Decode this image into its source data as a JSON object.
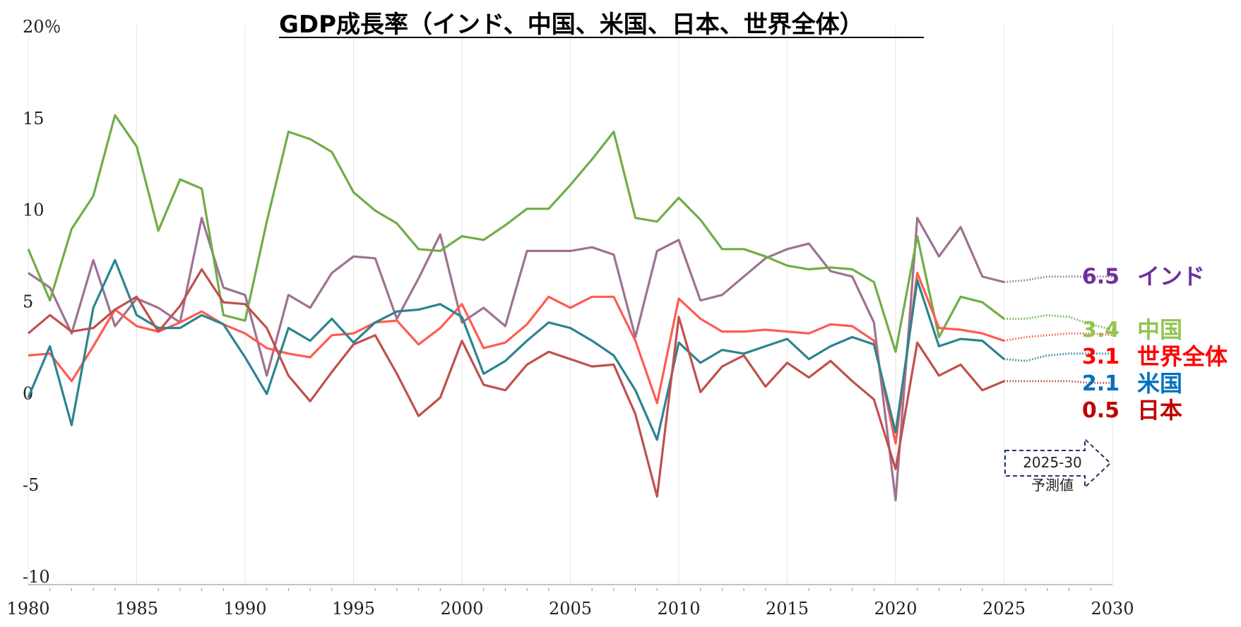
{
  "chart_data": {
    "type": "line",
    "title": "GDP成長率（インド、中国、米国、日本、世界全体）",
    "ylabel_unit": "％",
    "ylim": [
      -10,
      20
    ],
    "xlim": [
      1980,
      2030
    ],
    "yticks": [
      {
        "value": 20,
        "label": "20"
      },
      {
        "value": 15,
        "label": "15"
      },
      {
        "value": 10,
        "label": "10"
      },
      {
        "value": 5,
        "label": "5"
      },
      {
        "value": 0,
        "label": "0"
      },
      {
        "value": -5,
        "label": "-5"
      },
      {
        "value": -10,
        "label": "-10"
      }
    ],
    "xticks": [
      "1980",
      "1985",
      "1990",
      "1995",
      "2000",
      "2005",
      "2010",
      "2015",
      "2020",
      "2025",
      "2030"
    ],
    "forecast_note": {
      "line1": "2025-30",
      "line2": "予測値"
    },
    "series": [
      {
        "name": "インド",
        "label_value": "6.5",
        "color": "#9E7291",
        "label_color": "#7030A0",
        "years": [
          1980,
          1981,
          1982,
          1983,
          1984,
          1985,
          1986,
          1987,
          1988,
          1989,
          1990,
          1991,
          1992,
          1993,
          1994,
          1995,
          1996,
          1997,
          1998,
          1999,
          2000,
          2001,
          2002,
          2003,
          2004,
          2005,
          2006,
          2007,
          2008,
          2009,
          2010,
          2011,
          2012,
          2013,
          2014,
          2015,
          2016,
          2017,
          2018,
          2019,
          2020,
          2021,
          2022,
          2023,
          2024,
          2025
        ],
        "values": [
          6.5,
          5.7,
          3.2,
          7.2,
          3.6,
          5.1,
          4.6,
          3.8,
          9.5,
          5.7,
          5.3,
          0.9,
          5.3,
          4.6,
          6.5,
          7.4,
          7.3,
          4.0,
          6.2,
          8.6,
          3.8,
          4.6,
          3.6,
          7.7,
          7.7,
          7.7,
          7.9,
          7.5,
          3.0,
          7.7,
          8.3,
          5.0,
          5.3,
          6.3,
          7.3,
          7.8,
          8.1,
          6.6,
          6.3,
          3.8,
          -5.9,
          9.5,
          7.4,
          9.0,
          6.3,
          6.0
        ],
        "forecast_years": [
          2025,
          2026,
          2027,
          2028,
          2029,
          2030
        ],
        "forecast_values": [
          6.0,
          6.1,
          6.3,
          6.3,
          6.3,
          6.3
        ]
      },
      {
        "name": "中国",
        "label_value": "3.4",
        "color": "#70AD47",
        "label_color": "#92C552",
        "years": [
          1980,
          1981,
          1982,
          1983,
          1984,
          1985,
          1986,
          1987,
          1988,
          1989,
          1990,
          1991,
          1992,
          1993,
          1994,
          1995,
          1996,
          1997,
          1998,
          1999,
          2000,
          2001,
          2002,
          2003,
          2004,
          2005,
          2006,
          2007,
          2008,
          2009,
          2010,
          2011,
          2012,
          2013,
          2014,
          2015,
          2016,
          2017,
          2018,
          2019,
          2020,
          2021,
          2022,
          2023,
          2024,
          2025
        ],
        "values": [
          7.8,
          5.0,
          8.9,
          10.7,
          15.1,
          13.4,
          8.8,
          11.6,
          11.1,
          4.2,
          3.9,
          9.3,
          14.2,
          13.8,
          13.1,
          10.9,
          9.9,
          9.2,
          7.8,
          7.7,
          8.5,
          8.3,
          9.1,
          10.0,
          10.0,
          11.3,
          12.7,
          14.2,
          9.5,
          9.3,
          10.6,
          9.4,
          7.8,
          7.8,
          7.4,
          6.9,
          6.7,
          6.8,
          6.7,
          6.0,
          2.2,
          8.5,
          3.0,
          5.2,
          4.9,
          4.0
        ],
        "forecast_years": [
          2025,
          2026,
          2027,
          2028,
          2029,
          2030
        ],
        "forecast_values": [
          4.0,
          4.0,
          4.2,
          4.1,
          3.7,
          3.4
        ]
      },
      {
        "name": "世界全体",
        "label_value": "3.1",
        "color": "#FF5B4F",
        "label_color": "#FF0000",
        "years": [
          1980,
          1981,
          1982,
          1983,
          1984,
          1985,
          1986,
          1987,
          1988,
          1989,
          1990,
          1991,
          1992,
          1993,
          1994,
          1995,
          1996,
          1997,
          1998,
          1999,
          2000,
          2001,
          2002,
          2003,
          2004,
          2005,
          2006,
          2007,
          2008,
          2009,
          2010,
          2011,
          2012,
          2013,
          2014,
          2015,
          2016,
          2017,
          2018,
          2019,
          2020,
          2021,
          2022,
          2023,
          2024,
          2025
        ],
        "values": [
          2.0,
          2.1,
          0.6,
          2.5,
          4.5,
          3.6,
          3.3,
          3.8,
          4.4,
          3.7,
          3.2,
          2.4,
          2.1,
          1.9,
          3.1,
          3.2,
          3.8,
          3.9,
          2.6,
          3.5,
          4.8,
          2.4,
          2.7,
          3.7,
          5.2,
          4.6,
          5.2,
          5.2,
          2.8,
          -0.6,
          5.1,
          4.0,
          3.3,
          3.3,
          3.4,
          3.3,
          3.2,
          3.7,
          3.6,
          2.8,
          -2.8,
          6.5,
          3.5,
          3.4,
          3.2,
          2.8
        ],
        "forecast_years": [
          2025,
          2026,
          2027,
          2028,
          2029,
          2030
        ],
        "forecast_values": [
          2.8,
          3.0,
          3.1,
          3.2,
          3.2,
          3.1
        ]
      },
      {
        "name": "米国",
        "label_value": "2.1",
        "color": "#2B8491",
        "label_color": "#0070C0",
        "years": [
          1980,
          1981,
          1982,
          1983,
          1984,
          1985,
          1986,
          1987,
          1988,
          1989,
          1990,
          1991,
          1992,
          1993,
          1994,
          1995,
          1996,
          1997,
          1998,
          1999,
          2000,
          2001,
          2002,
          2003,
          2004,
          2005,
          2006,
          2007,
          2008,
          2009,
          2010,
          2011,
          2012,
          2013,
          2014,
          2015,
          2016,
          2017,
          2018,
          2019,
          2020,
          2021,
          2022,
          2023,
          2024,
          2025
        ],
        "values": [
          -0.3,
          2.5,
          -1.8,
          4.6,
          7.2,
          4.2,
          3.5,
          3.5,
          4.2,
          3.7,
          1.9,
          -0.1,
          3.5,
          2.8,
          4.0,
          2.7,
          3.8,
          4.4,
          4.5,
          4.8,
          4.1,
          1.0,
          1.7,
          2.8,
          3.8,
          3.5,
          2.8,
          2.0,
          0.1,
          -2.6,
          2.7,
          1.6,
          2.3,
          2.1,
          2.5,
          2.9,
          1.8,
          2.5,
          3.0,
          2.6,
          -2.2,
          6.1,
          2.5,
          2.9,
          2.8,
          1.8
        ],
        "forecast_years": [
          2025,
          2026,
          2027,
          2028,
          2029,
          2030
        ],
        "forecast_values": [
          1.8,
          1.7,
          2.0,
          2.1,
          2.1,
          2.1
        ]
      },
      {
        "name": "日本",
        "label_value": "0.5",
        "color": "#C0504D",
        "label_color": "#C00000",
        "years": [
          1980,
          1981,
          1982,
          1983,
          1984,
          1985,
          1986,
          1987,
          1988,
          1989,
          1990,
          1991,
          1992,
          1993,
          1994,
          1995,
          1996,
          1997,
          1998,
          1999,
          2000,
          2001,
          2002,
          2003,
          2004,
          2005,
          2006,
          2007,
          2008,
          2009,
          2010,
          2011,
          2012,
          2013,
          2014,
          2015,
          2016,
          2017,
          2018,
          2019,
          2020,
          2021,
          2022,
          2023,
          2024,
          2025
        ],
        "values": [
          3.2,
          4.2,
          3.3,
          3.5,
          4.5,
          5.2,
          3.3,
          4.7,
          6.7,
          4.9,
          4.8,
          3.5,
          0.9,
          -0.5,
          1.1,
          2.6,
          3.1,
          1.0,
          -1.3,
          -0.3,
          2.8,
          0.4,
          0.1,
          1.5,
          2.2,
          1.8,
          1.4,
          1.5,
          -1.2,
          -5.7,
          4.1,
          0.0,
          1.4,
          2.0,
          0.3,
          1.6,
          0.8,
          1.7,
          0.6,
          -0.4,
          -4.2,
          2.7,
          0.9,
          1.5,
          0.1,
          0.6
        ],
        "forecast_years": [
          2025,
          2026,
          2027,
          2028,
          2029,
          2030
        ],
        "forecast_values": [
          0.6,
          0.6,
          0.6,
          0.6,
          0.5,
          0.5
        ]
      }
    ]
  }
}
